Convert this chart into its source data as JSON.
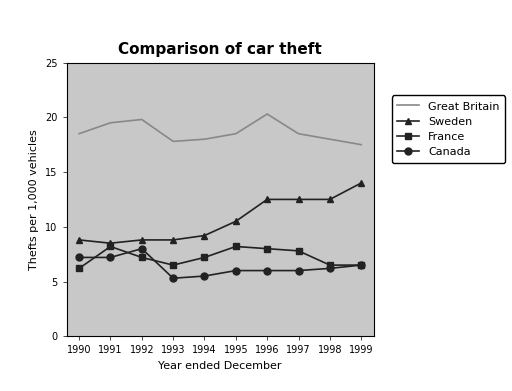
{
  "title": "Comparison of car theft",
  "xlabel": "Year ended December",
  "ylabel": "Thefts per 1,000 vehicles",
  "years": [
    1990,
    1991,
    1992,
    1993,
    1994,
    1995,
    1996,
    1997,
    1998,
    1999
  ],
  "series": {
    "Great Britain": {
      "values": [
        18.5,
        19.5,
        19.8,
        17.8,
        18.0,
        18.5,
        20.3,
        18.5,
        18.0,
        17.5
      ],
      "color": "#888888",
      "marker": null,
      "markersize": 0,
      "linestyle": "-"
    },
    "Sweden": {
      "values": [
        8.8,
        8.5,
        8.8,
        8.8,
        9.2,
        10.5,
        12.5,
        12.5,
        12.5,
        14.0
      ],
      "color": "#222222",
      "marker": "^",
      "markersize": 5,
      "linestyle": "-"
    },
    "France": {
      "values": [
        6.2,
        8.2,
        7.2,
        6.5,
        7.2,
        8.2,
        8.0,
        7.8,
        6.5,
        6.5
      ],
      "color": "#222222",
      "marker": "s",
      "markersize": 5,
      "linestyle": "-"
    },
    "Canada": {
      "values": [
        7.2,
        7.2,
        8.0,
        5.3,
        5.5,
        6.0,
        6.0,
        6.0,
        6.2,
        6.5
      ],
      "color": "#222222",
      "marker": "o",
      "markersize": 5,
      "linestyle": "-"
    }
  },
  "ylim": [
    0,
    25
  ],
  "yticks": [
    0,
    5,
    10,
    15,
    20,
    25
  ],
  "figure_bg": "#ffffff",
  "plot_bg": "#c8c8c8",
  "title_fontsize": 11,
  "axis_label_fontsize": 8,
  "tick_fontsize": 7,
  "legend_fontsize": 8
}
